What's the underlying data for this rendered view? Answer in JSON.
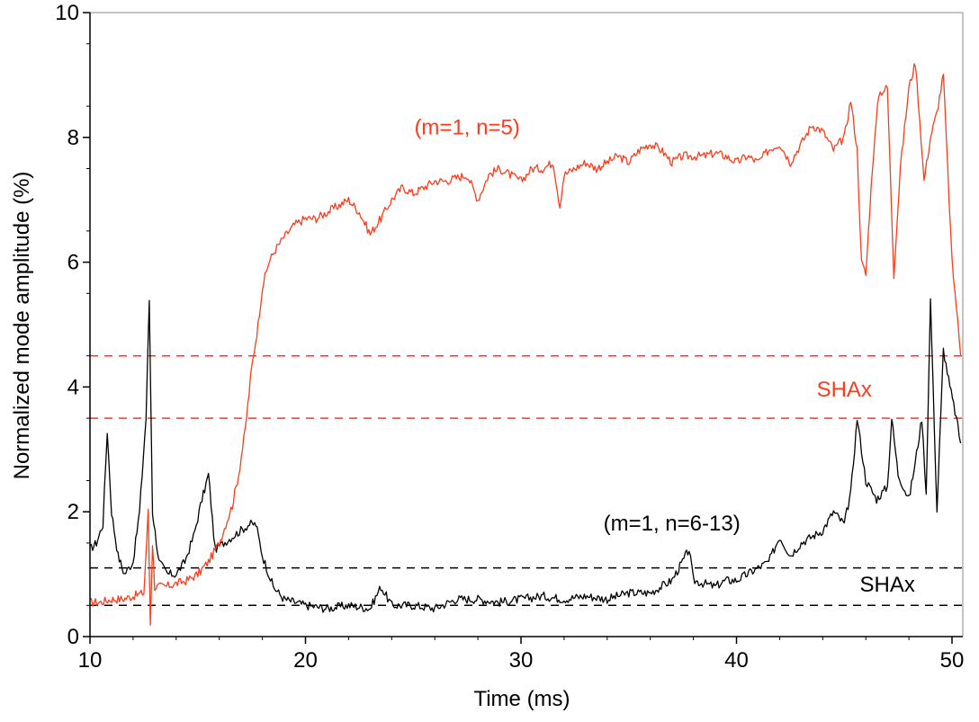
{
  "chart_data": {
    "type": "line",
    "xlabel": "Time (ms)",
    "ylabel": "Normalized mode amplitude (%)",
    "xlim": [
      10,
      50.5
    ],
    "ylim": [
      0,
      10
    ],
    "x_ticks": [
      10,
      20,
      30,
      40,
      50
    ],
    "y_ticks": [
      0,
      2,
      4,
      6,
      8,
      10
    ],
    "grid": false,
    "series": [
      {
        "name": "(m=1, n=5)",
        "color": "#ff3a1a",
        "x": [
          10.0,
          10.5,
          11.0,
          11.5,
          12.0,
          12.5,
          12.7,
          12.8,
          12.9,
          13.0,
          13.5,
          14.0,
          14.5,
          15.0,
          15.5,
          16.0,
          16.3,
          16.6,
          16.9,
          17.2,
          17.5,
          17.8,
          18.0,
          18.3,
          18.6,
          19.0,
          19.5,
          20.0,
          20.5,
          21.0,
          21.5,
          22.0,
          22.5,
          23.0,
          23.5,
          24.0,
          24.5,
          25.0,
          25.5,
          26.0,
          26.5,
          27.0,
          27.5,
          28.0,
          28.5,
          29.0,
          29.5,
          30.0,
          30.5,
          31.0,
          31.5,
          31.8,
          32.0,
          32.5,
          33.0,
          33.5,
          34.0,
          34.5,
          35.0,
          35.5,
          36.0,
          36.5,
          37.0,
          37.5,
          38.0,
          38.5,
          39.0,
          39.5,
          40.0,
          40.5,
          41.0,
          41.5,
          42.0,
          42.5,
          43.0,
          43.5,
          44.0,
          44.5,
          45.0,
          45.3,
          45.6,
          45.8,
          46.0,
          46.3,
          46.6,
          47.0,
          47.3,
          47.6,
          48.0,
          48.3,
          48.5,
          48.7,
          49.0,
          49.3,
          49.6,
          50.0,
          50.2,
          50.4
        ],
        "y": [
          0.55,
          0.55,
          0.6,
          0.6,
          0.65,
          0.7,
          2.0,
          0.2,
          1.5,
          0.8,
          0.8,
          0.85,
          0.9,
          1.0,
          1.2,
          1.5,
          1.8,
          2.1,
          2.6,
          3.3,
          4.3,
          5.0,
          5.6,
          6.0,
          6.2,
          6.4,
          6.6,
          6.7,
          6.7,
          6.8,
          6.9,
          7.0,
          6.8,
          6.45,
          6.7,
          7.0,
          7.2,
          7.1,
          7.2,
          7.3,
          7.3,
          7.35,
          7.4,
          7.0,
          7.4,
          7.5,
          7.4,
          7.3,
          7.5,
          7.5,
          7.6,
          6.9,
          7.4,
          7.5,
          7.6,
          7.5,
          7.6,
          7.7,
          7.6,
          7.8,
          7.9,
          7.8,
          7.6,
          7.7,
          7.7,
          7.7,
          7.75,
          7.7,
          7.6,
          7.7,
          7.6,
          7.8,
          7.9,
          7.6,
          7.9,
          8.2,
          8.1,
          7.8,
          8.0,
          8.6,
          7.8,
          6.0,
          5.8,
          7.5,
          8.7,
          8.8,
          5.8,
          7.5,
          8.8,
          9.2,
          8.3,
          7.3,
          8.0,
          8.4,
          9.0,
          6.0,
          5.3,
          4.5
        ]
      },
      {
        "name": "(m=1, n=6-13)",
        "color": "#000000",
        "x": [
          10.0,
          10.3,
          10.6,
          10.8,
          11.0,
          11.3,
          11.6,
          12.0,
          12.3,
          12.6,
          12.75,
          12.9,
          13.2,
          13.6,
          14.0,
          14.4,
          14.8,
          15.2,
          15.5,
          15.8,
          16.2,
          16.6,
          17.0,
          17.4,
          17.7,
          18.0,
          18.5,
          19.0,
          19.5,
          20.0,
          21.0,
          22.0,
          23.0,
          23.5,
          24.0,
          25.0,
          26.0,
          27.0,
          28.0,
          29.0,
          30.0,
          31.0,
          32.0,
          33.0,
          34.0,
          35.0,
          36.0,
          37.0,
          37.5,
          37.8,
          38.0,
          38.5,
          39.0,
          39.5,
          40.0,
          40.5,
          41.0,
          41.5,
          42.0,
          42.5,
          43.0,
          43.5,
          44.0,
          44.5,
          45.0,
          45.3,
          45.6,
          46.0,
          46.5,
          47.0,
          47.2,
          47.5,
          48.0,
          48.3,
          48.6,
          48.8,
          49.0,
          49.3,
          49.6,
          49.9,
          50.2,
          50.4
        ],
        "y": [
          1.4,
          1.5,
          1.8,
          3.3,
          2.0,
          1.3,
          1.0,
          1.2,
          2.0,
          3.5,
          5.4,
          2.0,
          1.2,
          1.0,
          1.0,
          1.2,
          1.6,
          2.2,
          2.6,
          1.4,
          1.5,
          1.6,
          1.7,
          1.8,
          1.8,
          1.3,
          0.8,
          0.6,
          0.55,
          0.5,
          0.45,
          0.5,
          0.45,
          0.8,
          0.5,
          0.5,
          0.45,
          0.6,
          0.6,
          0.55,
          0.6,
          0.65,
          0.6,
          0.65,
          0.6,
          0.7,
          0.7,
          0.9,
          1.2,
          1.4,
          0.9,
          0.85,
          0.8,
          0.9,
          0.9,
          1.0,
          1.1,
          1.2,
          1.6,
          1.3,
          1.5,
          1.6,
          1.7,
          2.0,
          1.8,
          2.3,
          3.5,
          2.5,
          2.2,
          2.4,
          3.5,
          2.6,
          2.2,
          2.8,
          3.5,
          2.3,
          5.4,
          2.0,
          4.6,
          4.0,
          3.5,
          3.1
        ]
      }
    ],
    "reference_lines": [
      {
        "y": 4.5,
        "color": "#ff3a1a",
        "style": "dashed"
      },
      {
        "y": 3.5,
        "color": "#ff3a1a",
        "style": "dashed"
      },
      {
        "y": 1.1,
        "color": "#000000",
        "style": "dashed"
      },
      {
        "y": 0.5,
        "color": "#000000",
        "style": "dashed"
      }
    ],
    "annotations": [
      {
        "text": "(m=1, n=5)",
        "x": 27.5,
        "y": 8.05,
        "color": "#ff3a1a"
      },
      {
        "text": "SHAx",
        "x": 45.0,
        "y": 3.85,
        "color": "#ff3a1a"
      },
      {
        "text": "(m=1, n=6-13)",
        "x": 37.0,
        "y": 1.7,
        "color": "#000000"
      },
      {
        "text": "SHAx",
        "x": 47.0,
        "y": 0.72,
        "color": "#000000"
      }
    ]
  }
}
